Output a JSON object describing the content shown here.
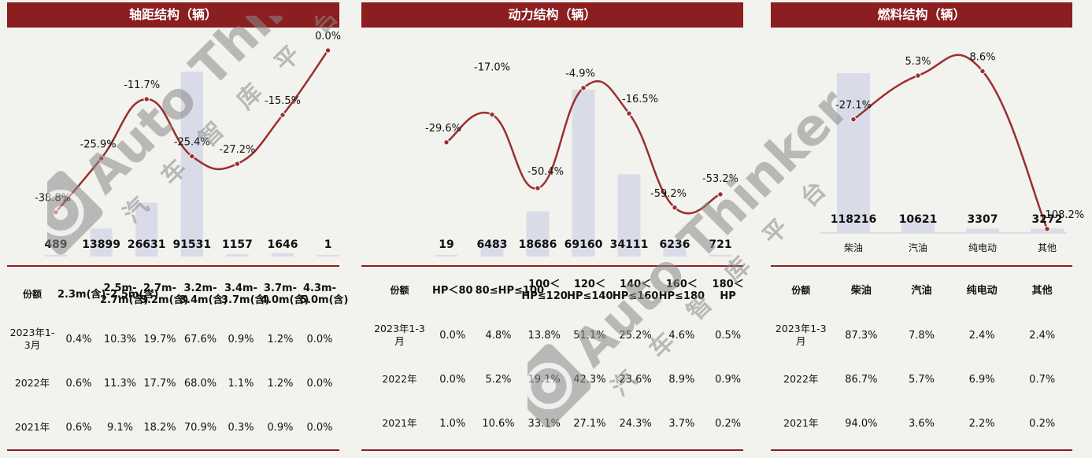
{
  "chart_data": [
    {
      "type": "bar",
      "title": "轴距结构（辆）",
      "categories": [
        "2.3m(含)-2.5m(含)",
        "2.5m-2.7m(含)",
        "2.7m-3.2m(含)",
        "3.2m-3.4m(含)",
        "3.4m-3.7m(含)",
        "3.7m-4.0m(含)",
        "4.3m-5.0m(含)"
      ],
      "series": [
        {
          "values": [
            489,
            13899,
            26631,
            91531,
            1157,
            1646,
            1
          ]
        },
        {
          "values": [
            -38.8,
            -25.9,
            -11.7,
            -25.4,
            -27.2,
            -15.5,
            0.0
          ]
        }
      ],
      "bar_labels": [
        "489",
        "13899",
        "26631",
        "91531",
        "1157",
        "1646",
        "1"
      ],
      "line_labels": [
        "-38.8%",
        "-25.9%",
        "-11.7%",
        "-25.4%",
        "-27.2%",
        "-15.5%",
        "0.0%"
      ],
      "table": {
        "headers": [
          "份额",
          "2.3m(含)-2.5m(含)",
          "2.5m-2.7m(含)",
          "2.7m-3.2m(含)",
          "3.2m-3.4m(含)",
          "3.4m-3.7m(含)",
          "3.7m-4.0m(含)",
          "4.3m-5.0m(含)"
        ],
        "rows": [
          [
            "2023年1-3月",
            "0.4%",
            "10.3%",
            "19.7%",
            "67.6%",
            "0.9%",
            "1.2%",
            "0.0%"
          ],
          [
            "2022年",
            "0.6%",
            "11.3%",
            "17.7%",
            "68.0%",
            "1.1%",
            "1.2%",
            "0.0%"
          ],
          [
            "2021年",
            "0.6%",
            "9.1%",
            "18.2%",
            "70.9%",
            "0.3%",
            "0.9%",
            "0.0%"
          ]
        ]
      }
    },
    {
      "type": "bar",
      "title": "动力结构（辆）",
      "categories": [
        "HP＜80",
        "80≤HP≤100",
        "100＜HP≤120",
        "120＜HP≤140",
        "140＜HP≤160",
        "160＜HP≤180",
        "180＜HP"
      ],
      "series": [
        {
          "values": [
            19,
            6483,
            18686,
            69160,
            34111,
            6236,
            721
          ]
        },
        {
          "values": [
            -29.6,
            -17.0,
            -50.4,
            -4.9,
            -16.5,
            -59.2,
            -53.2
          ]
        }
      ],
      "bar_labels": [
        "19",
        "6483",
        "18686",
        "69160",
        "34111",
        "6236",
        "721"
      ],
      "line_labels": [
        "-29.6%",
        "-17.0%",
        "-50.4%",
        "-4.9%",
        "-16.5%",
        "-59.2%",
        "-53.2%"
      ],
      "table": {
        "headers": [
          "份额",
          "HP＜80",
          "80≤HP≤100",
          "100＜HP≤120",
          "120＜HP≤140",
          "140＜HP≤160",
          "160＜HP≤180",
          "180＜HP"
        ],
        "rows": [
          [
            "2023年1-3月",
            "0.0%",
            "4.8%",
            "13.8%",
            "51.1%",
            "25.2%",
            "4.6%",
            "0.5%"
          ],
          [
            "2022年",
            "0.0%",
            "5.2%",
            "19.1%",
            "42.3%",
            "23.6%",
            "8.9%",
            "0.9%"
          ],
          [
            "2021年",
            "1.0%",
            "10.6%",
            "33.1%",
            "27.1%",
            "24.3%",
            "3.7%",
            "0.2%"
          ]
        ]
      }
    },
    {
      "type": "bar",
      "title": "燃料结构（辆）",
      "categories": [
        "柴油",
        "汽油",
        "纯电动",
        "其他"
      ],
      "series": [
        {
          "values": [
            118216,
            10621,
            3307,
            3272
          ]
        },
        {
          "values": [
            -27.1,
            5.3,
            8.6,
            -108.2
          ]
        }
      ],
      "bar_labels": [
        "118216",
        "10621",
        "3307",
        "3272"
      ],
      "line_labels": [
        "-27.1%",
        "5.3%",
        "8.6%",
        "-108.2%"
      ],
      "table": {
        "headers": [
          "份额",
          "柴油",
          "汽油",
          "纯电动",
          "其他"
        ],
        "rows": [
          [
            "2023年1-3月",
            "87.3%",
            "7.8%",
            "2.4%",
            "2.4%"
          ],
          [
            "2022年",
            "86.7%",
            "5.7%",
            "6.9%",
            "0.7%"
          ],
          [
            "2021年",
            "94.0%",
            "3.6%",
            "2.2%",
            "0.2%"
          ]
        ]
      }
    }
  ],
  "colors": {
    "header_bg": "#8b1e1e",
    "bar": "#d9dce8",
    "line": "#9b2f2f"
  },
  "watermark": {
    "text": "Auto Thinker",
    "cn": "汽车智库平台"
  }
}
